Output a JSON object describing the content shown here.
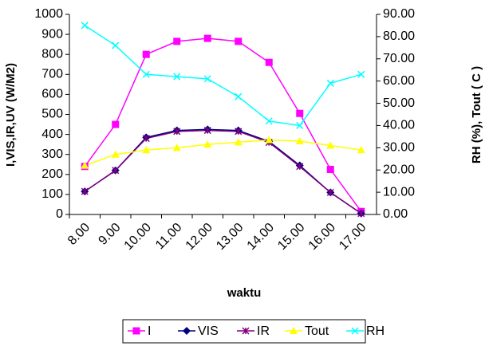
{
  "chart_data": {
    "type": "line",
    "x_label": "waktu",
    "y_label": "I,VIS,IR,UV (W/M2)",
    "y2_label": "RH (%), Tout ( C )",
    "categories": [
      "8.00",
      "9.00",
      "10.00",
      "11.00",
      "12.00",
      "13.00",
      "14.00",
      "15.00",
      "16.00",
      "17.00"
    ],
    "ylim": [
      0,
      1000
    ],
    "yticks": [
      0,
      100,
      200,
      300,
      400,
      500,
      600,
      700,
      800,
      900,
      1000
    ],
    "y2lim": [
      0,
      90
    ],
    "y2ticks": [
      {
        "value": 0,
        "label": "0.00"
      },
      {
        "value": 10,
        "label": "10.00"
      },
      {
        "value": 20,
        "label": "20.00"
      },
      {
        "value": 30,
        "label": "30.00"
      },
      {
        "value": 40,
        "label": "40.00"
      },
      {
        "value": 50,
        "label": "50.00"
      },
      {
        "value": 60,
        "label": "60.00"
      },
      {
        "value": 70,
        "label": "70.00"
      },
      {
        "value": 80,
        "label": "80.00"
      },
      {
        "value": 90,
        "label": "90.00"
      }
    ],
    "series": [
      {
        "name": "I",
        "color": "#ff00ff",
        "marker": "square",
        "values": [
          240,
          450,
          800,
          865,
          880,
          865,
          760,
          505,
          225,
          15
        ]
      },
      {
        "name": "VIS",
        "color": "#000080",
        "marker": "diamond",
        "values": [
          115,
          220,
          385,
          420,
          425,
          420,
          365,
          245,
          110,
          5
        ]
      },
      {
        "name": "IR",
        "color": "#800080",
        "marker": "star",
        "values": [
          115,
          220,
          380,
          415,
          420,
          415,
          360,
          240,
          110,
          5
        ]
      },
      {
        "name": "Tout",
        "color": "#ffff00",
        "marker": "triangle",
        "axis": "y2",
        "values": [
          22,
          27,
          29,
          30,
          31.5,
          32.5,
          33.5,
          33,
          31,
          29
        ]
      },
      {
        "name": "RH",
        "color": "#00ffff",
        "marker": "x",
        "axis": "y2",
        "values": [
          85,
          76,
          63,
          62,
          61,
          53,
          42,
          40,
          59,
          63
        ]
      }
    ]
  }
}
